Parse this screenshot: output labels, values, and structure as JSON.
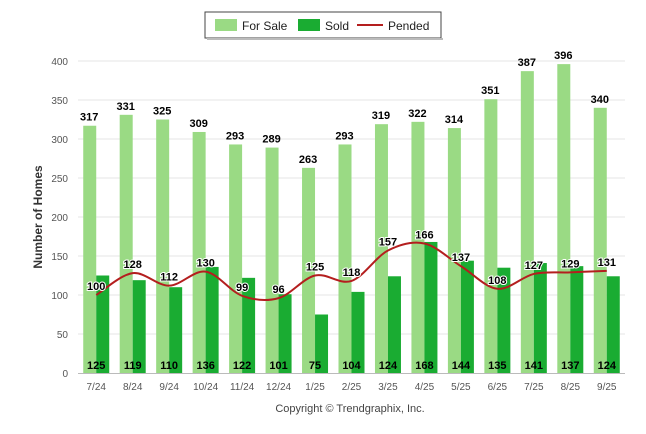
{
  "chart_data": {
    "type": "bar",
    "categories": [
      "7/24",
      "8/24",
      "9/24",
      "10/24",
      "11/24",
      "12/24",
      "1/25",
      "2/25",
      "3/25",
      "4/25",
      "5/25",
      "6/25",
      "7/25",
      "8/25",
      "9/25"
    ],
    "series": [
      {
        "name": "For Sale",
        "kind": "bar",
        "color": "#9ada84",
        "values": [
          317,
          331,
          325,
          309,
          293,
          289,
          263,
          293,
          319,
          322,
          314,
          351,
          387,
          396,
          340
        ]
      },
      {
        "name": "Sold",
        "kind": "bar",
        "color": "#1aac32",
        "values": [
          125,
          119,
          110,
          136,
          122,
          101,
          75,
          104,
          124,
          168,
          144,
          135,
          141,
          137,
          124
        ]
      },
      {
        "name": "Pended",
        "kind": "line",
        "color": "#b41e1e",
        "values": [
          100,
          128,
          112,
          130,
          99,
          96,
          125,
          118,
          157,
          166,
          137,
          108,
          127,
          129,
          131
        ]
      }
    ],
    "ylabel": "Number of Homes",
    "xlabel": "",
    "ylim": [
      0,
      400
    ],
    "yticks": [
      0,
      50,
      100,
      150,
      200,
      250,
      300,
      350,
      400
    ],
    "grid": true,
    "legend": "top-center"
  },
  "copyright": "Copyright © Trendgraphix, Inc."
}
